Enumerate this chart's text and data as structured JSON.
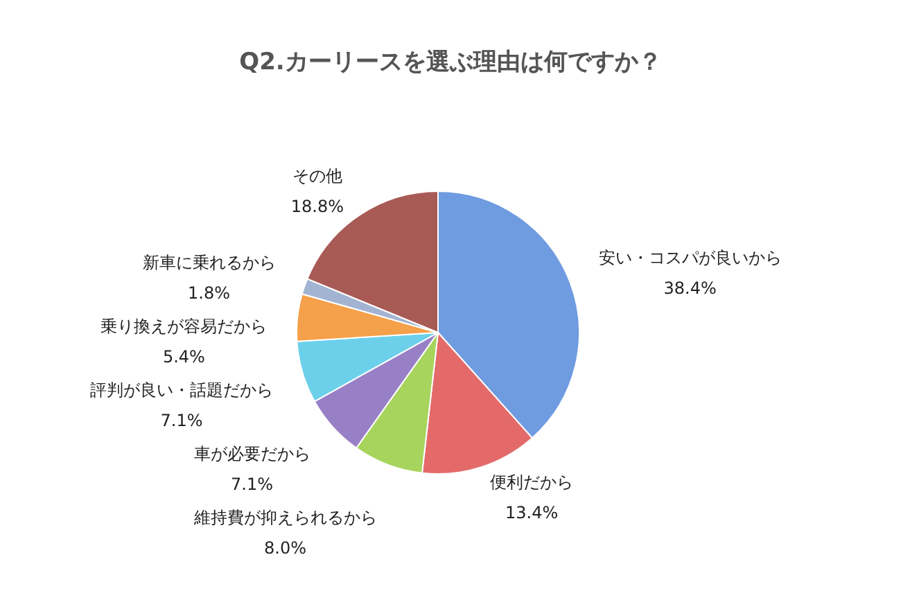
{
  "chart_data": {
    "type": "pie",
    "title": "Q2.カーリースを選ぶ理由は何ですか？",
    "categories": [
      "安い・コスパが良いから",
      "便利だから",
      "維持費が抑えられるから",
      "車が必要だから",
      "評判が良い・話題だから",
      "乗り換えが容易だから",
      "新車に乗れるから",
      "その他"
    ],
    "values": [
      38.4,
      13.4,
      8.0,
      7.1,
      7.1,
      5.4,
      1.8,
      18.8
    ],
    "value_labels": [
      "38.4%",
      "13.4%",
      "8.0%",
      "7.1%",
      "7.1%",
      "5.4%",
      "1.8%",
      "18.8%"
    ],
    "colors": [
      "#6f9be0",
      "#e46a6a",
      "#a6d45c",
      "#9880c6",
      "#6cd0ea",
      "#f5a04a",
      "#a3b4d2",
      "#a85a55"
    ]
  }
}
